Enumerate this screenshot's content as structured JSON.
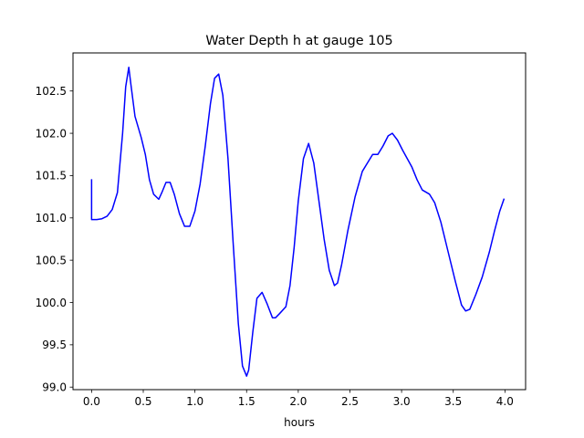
{
  "chart_data": {
    "type": "line",
    "title": "Water Depth h at gauge 105",
    "xlabel": "hours",
    "ylabel": "",
    "xlim": [
      -0.18,
      4.2
    ],
    "ylim": [
      98.97,
      102.95
    ],
    "xticks": [
      0.0,
      0.5,
      1.0,
      1.5,
      2.0,
      2.5,
      3.0,
      3.5,
      4.0
    ],
    "xtick_labels": [
      "0.0",
      "0.5",
      "1.0",
      "1.5",
      "2.0",
      "2.5",
      "3.0",
      "3.5",
      "4.0"
    ],
    "yticks": [
      99.0,
      99.5,
      100.0,
      100.5,
      101.0,
      101.5,
      102.0,
      102.5
    ],
    "ytick_labels": [
      "99.0",
      "99.5",
      "100.0",
      "100.5",
      "101.0",
      "101.5",
      "102.0",
      "102.5"
    ],
    "grid": false,
    "legend": "none",
    "series": [
      {
        "color": "#0000ff",
        "x": [
          0.0,
          0.0,
          0.05,
          0.1,
          0.15,
          0.2,
          0.25,
          0.3,
          0.33,
          0.36,
          0.38,
          0.42,
          0.48,
          0.52,
          0.56,
          0.6,
          0.65,
          0.68,
          0.72,
          0.76,
          0.8,
          0.85,
          0.9,
          0.95,
          1.0,
          1.05,
          1.1,
          1.15,
          1.19,
          1.23,
          1.27,
          1.32,
          1.37,
          1.42,
          1.46,
          1.5,
          1.52,
          1.56,
          1.6,
          1.65,
          1.7,
          1.75,
          1.78,
          1.82,
          1.88,
          1.92,
          1.96,
          2.0,
          2.05,
          2.1,
          2.15,
          2.2,
          2.25,
          2.3,
          2.35,
          2.38,
          2.42,
          2.48,
          2.55,
          2.62,
          2.67,
          2.72,
          2.77,
          2.82,
          2.87,
          2.91,
          2.96,
          3.01,
          3.1,
          3.15,
          3.2,
          3.27,
          3.32,
          3.38,
          3.45,
          3.52,
          3.58,
          3.62,
          3.66,
          3.72,
          3.78,
          3.85,
          3.9,
          3.95,
          3.99
        ],
        "y": [
          101.45,
          100.98,
          100.98,
          100.99,
          101.02,
          101.1,
          101.3,
          102.0,
          102.55,
          102.78,
          102.58,
          102.2,
          101.95,
          101.75,
          101.45,
          101.28,
          101.22,
          101.3,
          101.42,
          101.42,
          101.28,
          101.05,
          100.9,
          100.9,
          101.08,
          101.4,
          101.85,
          102.35,
          102.65,
          102.7,
          102.45,
          101.7,
          100.7,
          99.75,
          99.25,
          99.13,
          99.2,
          99.65,
          100.05,
          100.12,
          99.98,
          99.82,
          99.82,
          99.87,
          99.95,
          100.2,
          100.65,
          101.2,
          101.7,
          101.88,
          101.65,
          101.2,
          100.75,
          100.38,
          100.2,
          100.23,
          100.45,
          100.85,
          101.25,
          101.55,
          101.65,
          101.75,
          101.75,
          101.85,
          101.97,
          102.0,
          101.92,
          101.8,
          101.6,
          101.45,
          101.33,
          101.28,
          101.18,
          100.95,
          100.6,
          100.25,
          99.97,
          99.9,
          99.92,
          100.1,
          100.3,
          100.6,
          100.85,
          101.08,
          101.22
        ]
      }
    ]
  },
  "style": {
    "line_color": "#0000ff",
    "axes_color": "#000000",
    "background": "#ffffff"
  }
}
